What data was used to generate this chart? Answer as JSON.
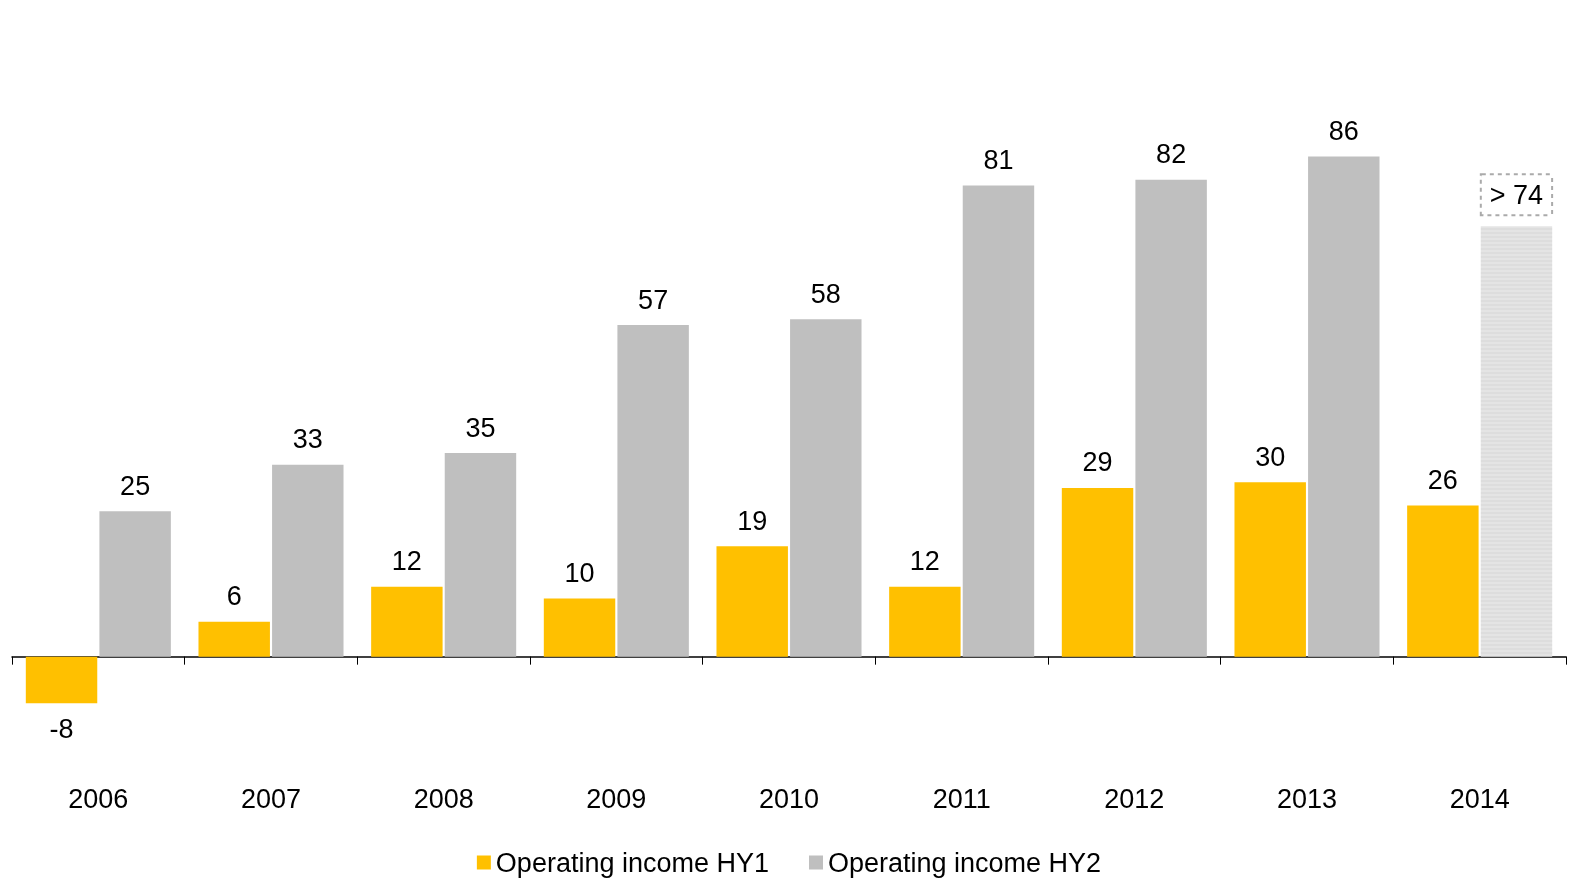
{
  "chart_data": {
    "type": "bar",
    "categories": [
      "2006",
      "2007",
      "2008",
      "2009",
      "2010",
      "2011",
      "2012",
      "2013",
      "2014"
    ],
    "series": [
      {
        "name": "Operating income HY1",
        "color": "#ffc000",
        "values": [
          -8,
          6,
          12,
          10,
          19,
          12,
          29,
          30,
          26
        ],
        "value_labels": [
          "-8",
          "6",
          "12",
          "10",
          "19",
          "12",
          "29",
          "30",
          "26"
        ]
      },
      {
        "name": "Operating income HY2",
        "color": "#bfbfbf",
        "colors": [
          "#bfbfbf",
          "#bfbfbf",
          "#bfbfbf",
          "#bfbfbf",
          "#bfbfbf",
          "#bfbfbf",
          "#bfbfbf",
          "#bfbfbf",
          "#e4e4e4"
        ],
        "values": [
          25,
          33,
          35,
          57,
          58,
          81,
          82,
          86,
          74
        ],
        "value_labels": [
          "25",
          "33",
          "35",
          "57",
          "58",
          "81",
          "82",
          "86",
          "> 74"
        ]
      }
    ],
    "legend": "bottom"
  }
}
